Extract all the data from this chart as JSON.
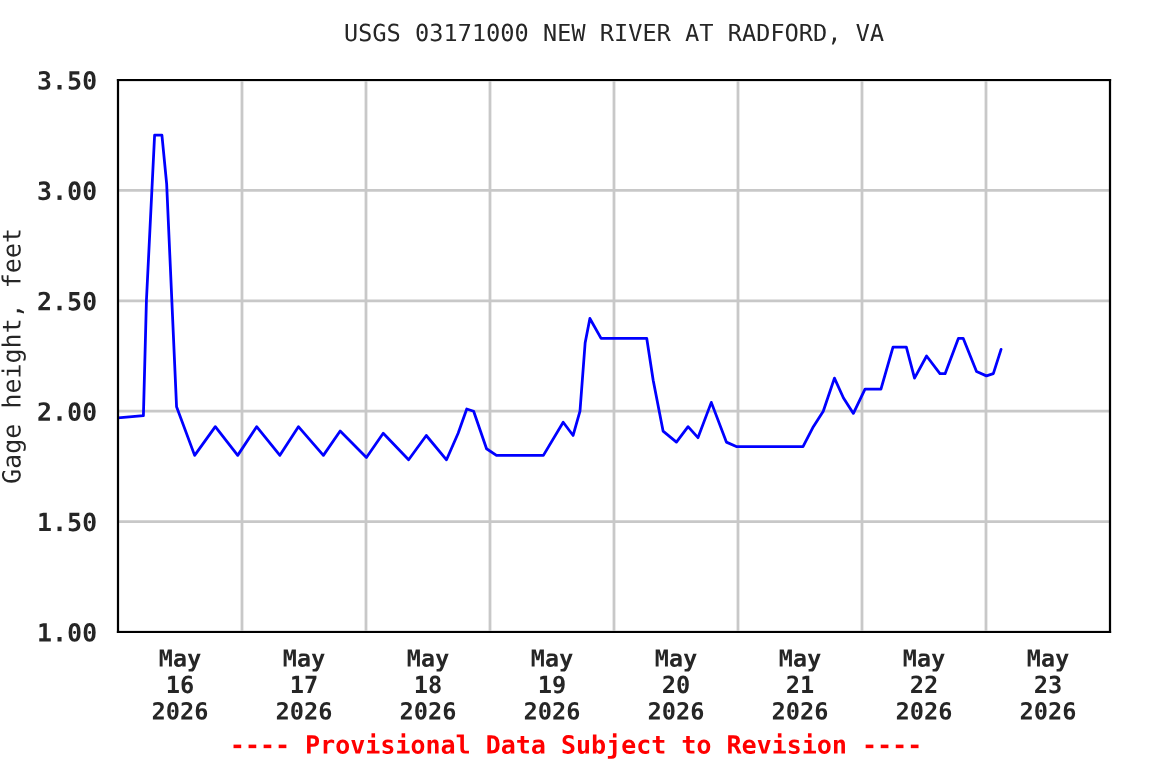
{
  "chart_data": {
    "type": "line",
    "title": "USGS 03171000 NEW RIVER AT RADFORD, VA",
    "ylabel": "Gage height, feet",
    "annotations": [
      "---- Provisional Data Subject to Revision ----"
    ],
    "x": [
      "2026-05-16T00:00",
      "2026-05-16T04:55",
      "2026-05-16T05:30",
      "2026-05-16T07:05",
      "2026-05-16T08:30",
      "2026-05-16T09:25",
      "2026-05-16T11:20",
      "2026-05-16T14:50",
      "2026-05-16T18:50",
      "2026-05-16T23:10",
      "2026-05-17T02:50",
      "2026-05-17T07:20",
      "2026-05-17T10:55",
      "2026-05-17T15:45",
      "2026-05-17T19:00",
      "2026-05-18T00:05",
      "2026-05-18T03:20",
      "2026-05-18T08:15",
      "2026-05-18T11:40",
      "2026-05-18T15:35",
      "2026-05-18T17:50",
      "2026-05-18T19:30",
      "2026-05-18T20:50",
      "2026-05-18T23:20",
      "2026-05-19T01:15",
      "2026-05-19T10:20",
      "2026-05-19T14:10",
      "2026-05-19T16:05",
      "2026-05-19T17:25",
      "2026-05-19T18:25",
      "2026-05-19T19:20",
      "2026-05-19T21:30",
      "2026-05-20T06:20",
      "2026-05-20T07:35",
      "2026-05-20T09:30",
      "2026-05-20T12:05",
      "2026-05-20T14:20",
      "2026-05-20T16:15",
      "2026-05-20T18:50",
      "2026-05-20T21:45",
      "2026-05-20T23:40",
      "2026-05-21T12:35",
      "2026-05-21T14:35",
      "2026-05-21T16:30",
      "2026-05-21T18:40",
      "2026-05-21T20:25",
      "2026-05-21T22:20",
      "2026-05-22T00:35",
      "2026-05-22T03:40",
      "2026-05-22T06:00",
      "2026-05-22T08:35",
      "2026-05-22T10:10",
      "2026-05-22T12:30",
      "2026-05-22T15:05",
      "2026-05-22T16:05",
      "2026-05-22T18:40",
      "2026-05-22T19:35",
      "2026-05-22T22:10",
      "2026-05-23T00:05",
      "2026-05-23T01:25",
      "2026-05-23T02:55"
    ],
    "series": [
      {
        "color": "#0000ff",
        "values": [
          1.97,
          1.98,
          2.5,
          3.25,
          3.25,
          3.03,
          2.02,
          1.8,
          1.93,
          1.8,
          1.93,
          1.8,
          1.93,
          1.8,
          1.91,
          1.79,
          1.9,
          1.78,
          1.89,
          1.78,
          1.9,
          2.01,
          2.0,
          1.83,
          1.8,
          1.8,
          1.95,
          1.89,
          2.0,
          2.31,
          2.42,
          2.33,
          2.33,
          2.14,
          1.91,
          1.86,
          1.93,
          1.88,
          2.04,
          1.86,
          1.84,
          1.84,
          1.93,
          2.0,
          2.15,
          2.06,
          1.99,
          2.1,
          2.1,
          2.29,
          2.29,
          2.15,
          2.25,
          2.17,
          2.17,
          2.33,
          2.33,
          2.18,
          2.16,
          2.17,
          2.28
        ]
      }
    ],
    "xlim": [
      "2026-05-16",
      "2026-05-24"
    ],
    "xticks": [
      {
        "value": "2026-05-17",
        "label": null
      },
      {
        "value": "2026-05-18",
        "label": null
      },
      {
        "value": "2026-05-19",
        "label": null
      },
      {
        "value": "2026-05-20",
        "label": null
      },
      {
        "value": "2026-05-21",
        "label": null
      },
      {
        "value": "2026-05-22",
        "label": null
      },
      {
        "value": "2026-05-23",
        "label": null
      },
      {
        "value": "2026-05-16T12:00",
        "label": "May\n16\n2026"
      },
      {
        "value": "2026-05-17T12:00",
        "label": "May\n17\n2026"
      },
      {
        "value": "2026-05-18T12:00",
        "label": "May\n18\n2026"
      },
      {
        "value": "2026-05-19T12:00",
        "label": "May\n19\n2026"
      },
      {
        "value": "2026-05-20T12:00",
        "label": "May\n20\n2026"
      },
      {
        "value": "2026-05-21T12:00",
        "label": "May\n21\n2026"
      },
      {
        "value": "2026-05-22T12:00",
        "label": "May\n22\n2026"
      },
      {
        "value": "2026-05-23T12:00",
        "label": "May\n23\n2026"
      }
    ],
    "ylim": [
      1.0,
      3.5
    ],
    "yticks": [
      {
        "value": 1.0,
        "label": "1.00"
      },
      {
        "value": 1.5,
        "label": "1.50"
      },
      {
        "value": 2.0,
        "label": "2.00"
      },
      {
        "value": 2.5,
        "label": "2.50"
      },
      {
        "value": 3.0,
        "label": "3.00"
      },
      {
        "value": 3.5,
        "label": "3.50"
      }
    ],
    "grid": true,
    "legend": false
  }
}
